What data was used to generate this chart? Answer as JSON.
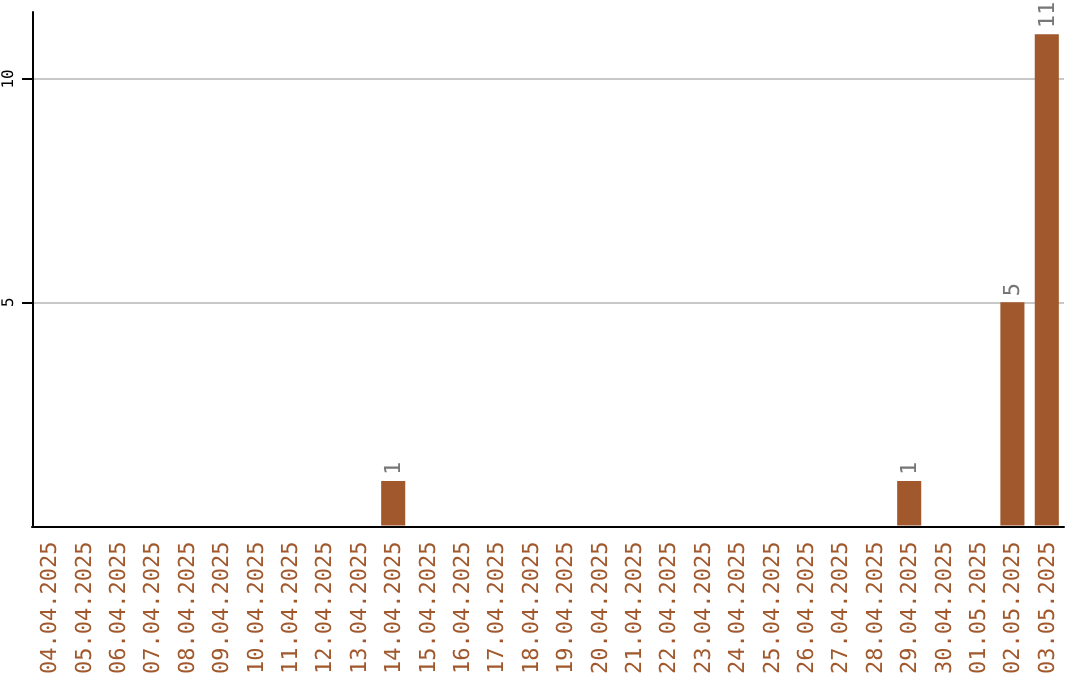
{
  "chart_data": {
    "type": "bar",
    "categories": [
      "04.04.2025",
      "05.04.2025",
      "06.04.2025",
      "07.04.2025",
      "08.04.2025",
      "09.04.2025",
      "10.04.2025",
      "11.04.2025",
      "12.04.2025",
      "13.04.2025",
      "14.04.2025",
      "15.04.2025",
      "16.04.2025",
      "17.04.2025",
      "18.04.2025",
      "19.04.2025",
      "20.04.2025",
      "21.04.2025",
      "22.04.2025",
      "23.04.2025",
      "24.04.2025",
      "25.04.2025",
      "26.04.2025",
      "27.04.2025",
      "28.04.2025",
      "29.04.2025",
      "30.04.2025",
      "01.05.2025",
      "02.05.2025",
      "03.05.2025"
    ],
    "values": [
      0,
      0,
      0,
      0,
      0,
      0,
      0,
      0,
      0,
      0,
      1,
      0,
      0,
      0,
      0,
      0,
      0,
      0,
      0,
      0,
      0,
      0,
      0,
      0,
      0,
      1,
      0,
      0,
      5,
      11
    ],
    "value_labels": [
      null,
      null,
      null,
      null,
      null,
      null,
      null,
      null,
      null,
      null,
      "1",
      null,
      null,
      null,
      null,
      null,
      null,
      null,
      null,
      null,
      null,
      null,
      null,
      null,
      null,
      "1",
      null,
      null,
      "5",
      "11"
    ],
    "color": "#a0582c",
    "ylim": [
      0,
      11.5
    ],
    "yticks": [
      5,
      10
    ],
    "grid": "y"
  }
}
